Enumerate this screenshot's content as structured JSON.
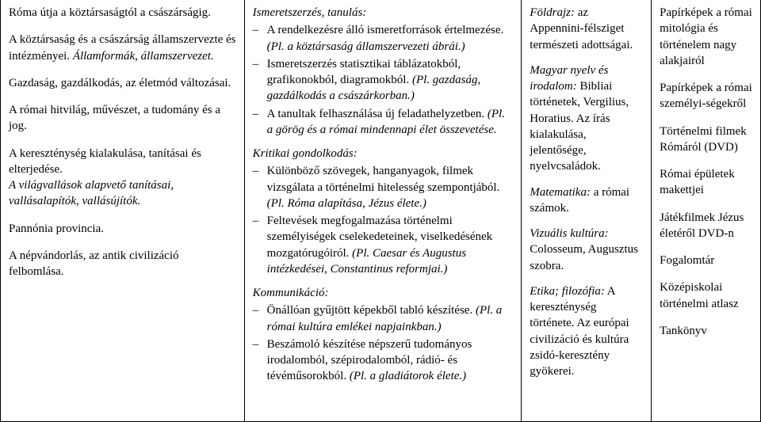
{
  "col1": {
    "p1": "Róma útja a köztársaságtól a császárságig.",
    "p2a": "A köztársaság és a császárság államszervezte és intézményei. ",
    "p2b": "Államformák, államszervezet.",
    "p3": "Gazdaság, gazdálkodás, az életmód változásai.",
    "p4": "A római hitvilág, művészet, a tudomány és a jog.",
    "p5a": "A kereszténység kialakulása, tanításai és elterjedése.",
    "p5b": "A világvallások alapvető tanításai, vallásalapítók, vallásújítók.",
    "p6": "Pannónia provincia.",
    "p7": "A népvándorlás, az antik civilizáció felbomlása."
  },
  "col2": {
    "h1": "Ismeretszerzés, tanulás:",
    "l1a": "A rendelkezésre álló ismeretforrások értelmezése. ",
    "l1b": "(Pl. a köztársaság államszervezeti ábrái.)",
    "l2a": "Ismeretszerzés statisztikai táblázatokból, grafikonokból, diagramokból. ",
    "l2b": "(Pl. gazdaság, gazdálkodás a császárkorban.)",
    "l3a": "A tanultak felhasználása új feladathelyzetben. ",
    "l3b": "(Pl. a görög és a római mindennapi élet összevetése.",
    "h2": "Kritikai gondolkodás:",
    "k1a": "Különböző szövegek, hanganyagok, filmek vizsgálata a történelmi hitelesség szempontjából. ",
    "k1b": "(Pl. Róma alapítása, Jézus élete.)",
    "k2a": "Feltevések megfogalmazása történelmi személyiségek cselekedeteinek, viselkedésének mozgatórugóiról. ",
    "k2b": "(Pl. Caesar és Augustus intézkedései, Constantinus reformjai.)",
    "h3": "Kommunikáció:",
    "m1a": "Önállóan gyűjtött képekből tabló készítése. ",
    "m1b": "(Pl. a római kultúra emlékei napjainkban.)",
    "m2a": "Beszámoló készítése népszerű tudományos irodalomból, szépirodalomból, rádió- és tévéműsorokból. ",
    "m2b": "(Pl. a gladiátorok élete.)"
  },
  "col3": {
    "p1a": "Földrajz:",
    "p1b": " az Appennini-félsziget természeti adottságai.",
    "p2a": "Magyar nyelv és irodalom:",
    "p2b": " Bibliai történetek, Vergilius, Horatius. Az írás kialakulása, jelentősége, nyelvcsaládok.",
    "p3a": "Matematika:",
    "p3b": " a római számok.",
    "p4a": "Vizuális kultúra:",
    "p4b": " Colosseum, Augusztus szobra.",
    "p5a": "Etika; filozófia:",
    "p5b": " A kereszténység története. Az európai civilizáció és kultúra zsidó-keresztény gyökerei."
  },
  "col4": {
    "p1": "Papírképek a római mitológia és történelem nagy alakjairól",
    "p2": "Papírképek a római személyi-ségekről",
    "p3": "Történelmi filmek Rómáról (DVD)",
    "p4": "Római épületek makettjei",
    "p5": "Játékfilmek Jézus életéről DVD-n",
    "p6": "Fogalomtár",
    "p7": "Középiskolai történelmi atlasz",
    "p8": "Tankönyv"
  }
}
